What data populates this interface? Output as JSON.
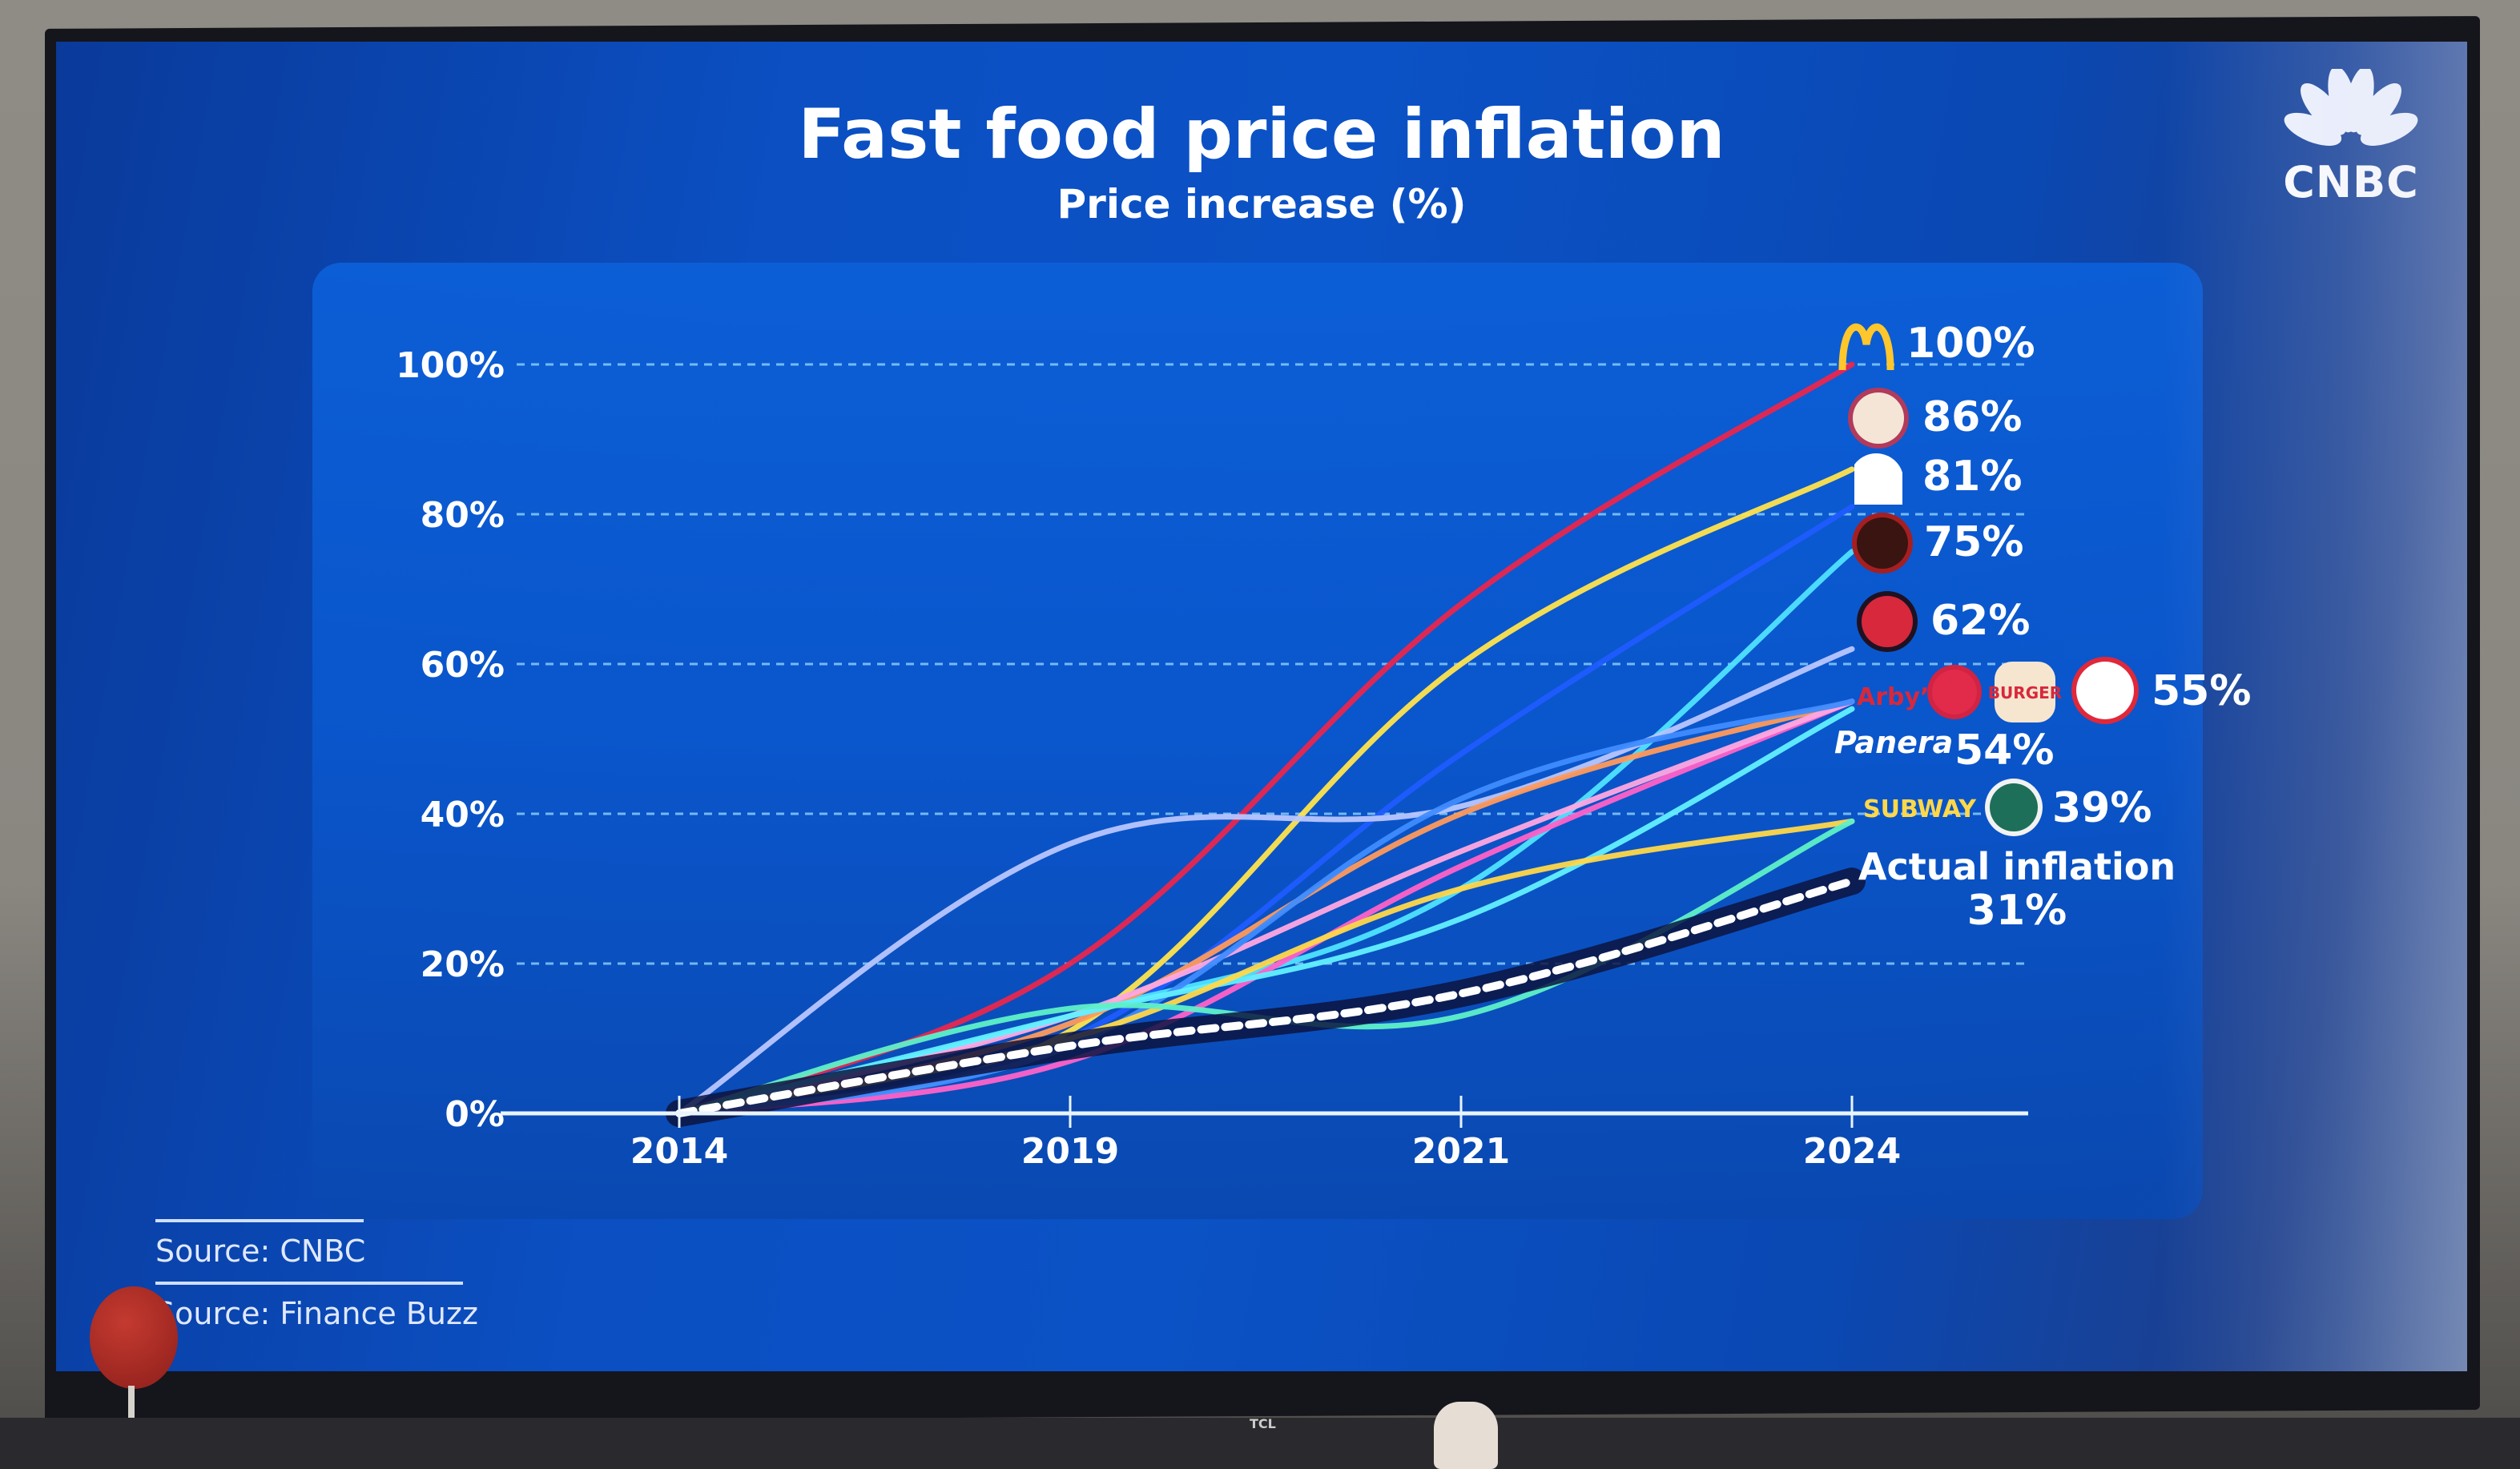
{
  "source_lines": [
    "Source: CNBC",
    "Source: Finance Buzz"
  ],
  "brand": {
    "logo_text": "CNBC",
    "logo_icon": "peacock-icon"
  },
  "device": {
    "tv_brand": "TCL"
  },
  "colors": {
    "screen_bg": "#0b4fc2",
    "grid": "#8fd3ff",
    "axis": "#e8f4ff",
    "text": "#ffffff"
  },
  "chart_data": {
    "type": "line",
    "title": "Fast food price inflation",
    "subtitle": "Price increase (%)",
    "xlabel": "",
    "ylabel": "Price increase (%)",
    "x": [
      "2014",
      "2019",
      "2021",
      "2024"
    ],
    "ylim": [
      0,
      100
    ],
    "yticks": [
      "0%",
      "20%",
      "40%",
      "60%",
      "80%",
      "100%"
    ],
    "ytick_values": [
      0,
      20,
      40,
      60,
      80,
      100
    ],
    "grid": true,
    "legend": "end-labels-right",
    "series": [
      {
        "name": "McDonald's",
        "color": "#e8264e",
        "values": [
          0,
          20,
          68,
          100
        ],
        "end_label": "100%",
        "logo": "mcdonalds-arches-icon"
      },
      {
        "name": "Popeyes Louisiana Kitchen",
        "color": "#ffe44d",
        "values": [
          0,
          11,
          60,
          86
        ],
        "end_label": "86%",
        "logo": "popeyes-icon"
      },
      {
        "name": "Taco Bell",
        "color": "#1f5cff",
        "values": [
          0,
          10,
          48,
          81
        ],
        "end_label": "81%",
        "logo": "taco-bell-icon"
      },
      {
        "name": "Chipotle Mexican Grill",
        "color": "#4fe3ff",
        "values": [
          0,
          13,
          30,
          75
        ],
        "end_label": "75%",
        "logo": "chipotle-icon"
      },
      {
        "name": "Jimmy John's",
        "color": "#b8c6ff",
        "values": [
          0,
          36,
          41,
          62
        ],
        "end_label": "62%",
        "logo": "jimmy-johns-icon"
      },
      {
        "name": "Arby's",
        "color": "#ff9a5c",
        "values": [
          0,
          12,
          40,
          55
        ],
        "end_label": "55%",
        "logo": "arbys-icon"
      },
      {
        "name": "Chick-fil-A",
        "color": "#ff62c8",
        "values": [
          0,
          7,
          33,
          55
        ],
        "end_label": "55%",
        "logo": "chick-fil-a-icon"
      },
      {
        "name": "Burger King",
        "color": "#ffa8e0",
        "values": [
          0,
          13,
          35,
          55
        ],
        "end_label": "55%",
        "logo": "burger-king-icon"
      },
      {
        "name": "Wendy's",
        "color": "#3f8cff",
        "values": [
          0,
          9,
          42,
          55
        ],
        "end_label": "55%",
        "logo": "wendys-icon"
      },
      {
        "name": "Panera Bread",
        "color": "#62f0ff",
        "values": [
          0,
          13,
          26,
          54
        ],
        "end_label": "54%",
        "logo": "panera-icon"
      },
      {
        "name": "Subway",
        "color": "#ffd84a",
        "values": [
          0,
          10,
          30,
          39
        ],
        "end_label": "39%",
        "logo": "subway-icon"
      },
      {
        "name": "Starbucks",
        "color": "#5ef0c8",
        "values": [
          0,
          14,
          13,
          39
        ],
        "end_label": "39%",
        "logo": "starbucks-icon"
      },
      {
        "name": "Actual inflation",
        "color": "#ffffff",
        "style": "dashed",
        "values": [
          0,
          9,
          16,
          31
        ],
        "end_label": "31%"
      }
    ],
    "annotations": [
      {
        "series": "McDonald's",
        "text": "100%"
      },
      {
        "series": "Popeyes Louisiana Kitchen",
        "text": "86%"
      },
      {
        "series": "Taco Bell",
        "text": "81%"
      },
      {
        "series": "Chipotle Mexican Grill",
        "text": "75%"
      },
      {
        "series": "Jimmy John's",
        "text": "62%"
      },
      {
        "group": [
          "Arby's",
          "Chick-fil-A",
          "Burger King",
          "Wendy's"
        ],
        "text": "55%"
      },
      {
        "series": "Panera Bread",
        "text": "54%"
      },
      {
        "group": [
          "Subway",
          "Starbucks"
        ],
        "text": "39%"
      },
      {
        "series": "Actual inflation",
        "text": "Actual inflation",
        "value_text": "31%"
      }
    ]
  }
}
